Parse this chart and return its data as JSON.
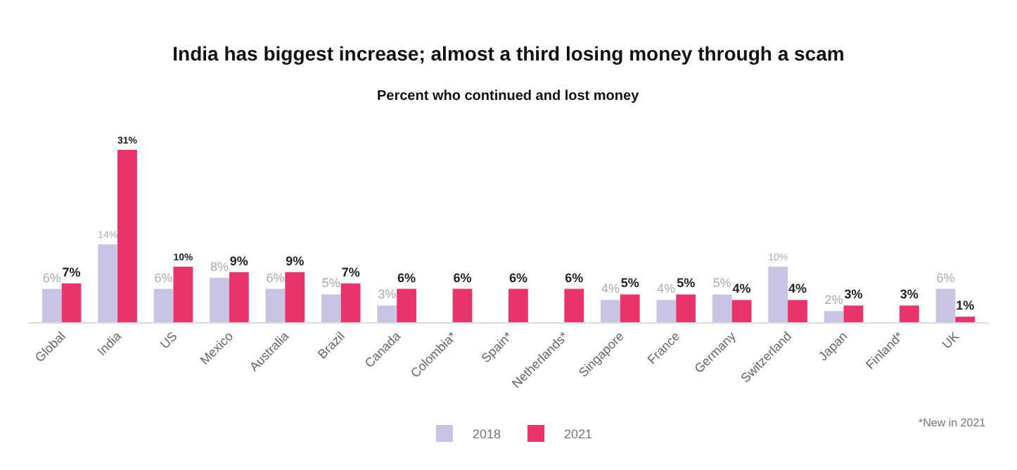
{
  "chart_data": {
    "type": "bar",
    "title": "India has biggest increase; almost a third losing money through a scam",
    "subtitle": "Percent who continued and lost money",
    "categories": [
      "Global",
      "India",
      "US",
      "Mexico",
      "Australia",
      "Brazil",
      "Canada",
      "Colombia*",
      "Spain*",
      "Netherlands*",
      "Singapore",
      "France",
      "Germany",
      "Switzerland",
      "Japan",
      "Finland*",
      "UK"
    ],
    "series": [
      {
        "name": "2018",
        "color": "#cac4e4",
        "values": [
          6,
          14,
          6,
          8,
          6,
          5,
          3,
          null,
          null,
          null,
          4,
          4,
          5,
          10,
          2,
          null,
          6
        ],
        "value_labels": [
          "6%",
          "14%",
          "6%",
          "8%",
          "6%",
          "5%",
          "3%",
          null,
          null,
          null,
          "4%",
          "4%",
          "5%",
          "10%",
          "2%",
          null,
          "6%"
        ]
      },
      {
        "name": "2021",
        "color": "#e8336b",
        "values": [
          7,
          31,
          10,
          9,
          9,
          7,
          6,
          6,
          6,
          6,
          5,
          5,
          4,
          4,
          3,
          3,
          1
        ],
        "value_labels": [
          "7%",
          "31%",
          "10%",
          "9%",
          "9%",
          "7%",
          "6%",
          "6%",
          "6%",
          "6%",
          "5%",
          "5%",
          "4%",
          "4%",
          "3%",
          "3%",
          "1%"
        ]
      }
    ],
    "legend": "bottom",
    "annotations": [
      "*New in 2021"
    ]
  }
}
